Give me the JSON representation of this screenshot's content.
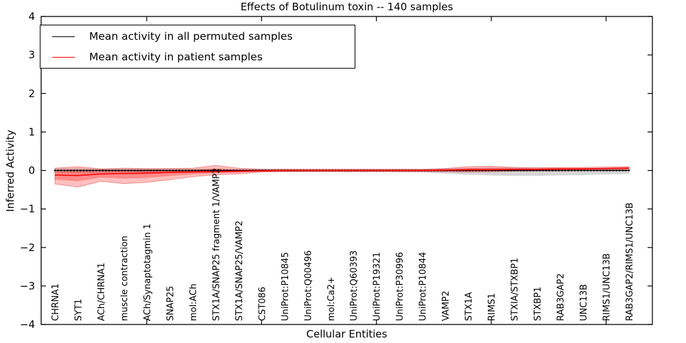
{
  "chart_data": {
    "type": "area",
    "title": "Effects of Botulinum toxin -- 140 samples",
    "xlabel": "Cellular Entities",
    "ylabel": "Inferred Activity",
    "ylim": [
      -4,
      4
    ],
    "yticks": [
      4,
      3,
      2,
      1,
      0,
      -1,
      -2,
      -3,
      -4
    ],
    "xtick_indices": [
      4,
      9,
      14,
      19,
      24
    ],
    "grid": false,
    "background": "#ffffff",
    "categories": [
      "CHRNA1",
      "SYT1",
      "ACh/CHRNA1",
      "muscle contraction",
      "ACh/Synaptotagmin 1",
      "SNAP25",
      "mol:ACh",
      "STX1A/SNAP25 fragment 1/VAMP2",
      "STX1A/SNAP25/VAMP2",
      "CST086",
      "UniProt:P10845",
      "UniProt:Q00496",
      "mol:Ca2+",
      "UniProt:Q60393",
      "UniProt:P19321",
      "UniProt:P30996",
      "UniProt:P10844",
      "VAMP2",
      "STX1A",
      "RIMS1",
      "STXIA/STXBP1",
      "STXBP1",
      "RAB3GAP2",
      "UNC13B",
      "RIMS1/UNC13B",
      "RAB3GAP2/RIMS1/UNC13B"
    ],
    "series": [
      {
        "name": "Mean activity in all permuted samples",
        "color": "#000000",
        "band_color": "rgba(0,0,0,0.16)",
        "style": "solid line with dense dot markers",
        "values": [
          0,
          0,
          0,
          0,
          0,
          0,
          0,
          0,
          0,
          0,
          0,
          0,
          0,
          0,
          0,
          0,
          0,
          0,
          0,
          0,
          0,
          0,
          0,
          0,
          0,
          0
        ],
        "band": [
          [
            -0.07,
            0.06
          ],
          [
            -0.07,
            0.06
          ],
          [
            -0.06,
            0.05
          ],
          [
            -0.06,
            0.05
          ],
          [
            -0.06,
            0.05
          ],
          [
            -0.05,
            0.05
          ],
          [
            -0.05,
            0.05
          ],
          [
            -0.05,
            0.05
          ],
          [
            -0.04,
            0.04
          ],
          [
            -0.04,
            0.04
          ],
          [
            -0.04,
            0.04
          ],
          [
            -0.04,
            0.04
          ],
          [
            -0.04,
            0.04
          ],
          [
            -0.04,
            0.04
          ],
          [
            -0.04,
            0.04
          ],
          [
            -0.04,
            0.04
          ],
          [
            -0.05,
            0.04
          ],
          [
            -0.08,
            0.06
          ],
          [
            -0.11,
            0.07
          ],
          [
            -0.13,
            0.08
          ],
          [
            -0.14,
            0.08
          ],
          [
            -0.14,
            0.08
          ],
          [
            -0.13,
            0.07
          ],
          [
            -0.12,
            0.07
          ],
          [
            -0.1,
            0.06
          ],
          [
            -0.09,
            0.06
          ]
        ]
      },
      {
        "name": "Mean activity in patient samples",
        "color": "#ff0000",
        "band_color": "rgba(255,0,0,0.25)",
        "style": "solid",
        "values": [
          -0.12,
          -0.13,
          -0.09,
          -0.08,
          -0.07,
          -0.05,
          -0.04,
          -0.03,
          -0.02,
          -0.01,
          0,
          0,
          0,
          0,
          0,
          0,
          0,
          0.01,
          0.02,
          0.02,
          0.03,
          0.03,
          0.04,
          0.04,
          0.05,
          0.06
        ],
        "band": [
          [
            -0.35,
            0.06
          ],
          [
            -0.43,
            0.1
          ],
          [
            -0.28,
            0.04
          ],
          [
            -0.34,
            0.06
          ],
          [
            -0.31,
            0.05
          ],
          [
            -0.24,
            0.05
          ],
          [
            -0.16,
            0.06
          ],
          [
            -0.11,
            0.13
          ],
          [
            -0.09,
            0.06
          ],
          [
            -0.04,
            0.03
          ],
          [
            -0.03,
            0.03
          ],
          [
            -0.03,
            0.03
          ],
          [
            -0.03,
            0.03
          ],
          [
            -0.03,
            0.03
          ],
          [
            -0.03,
            0.03
          ],
          [
            -0.03,
            0.03
          ],
          [
            -0.03,
            0.03
          ],
          [
            -0.03,
            0.05
          ],
          [
            -0.04,
            0.1
          ],
          [
            -0.03,
            0.11
          ],
          [
            -0.02,
            0.08
          ],
          [
            -0.01,
            0.07
          ],
          [
            -0.01,
            0.08
          ],
          [
            0.0,
            0.08
          ],
          [
            0.01,
            0.09
          ],
          [
            0.02,
            0.1
          ]
        ]
      }
    ],
    "legend": {
      "position": "upper left"
    }
  }
}
